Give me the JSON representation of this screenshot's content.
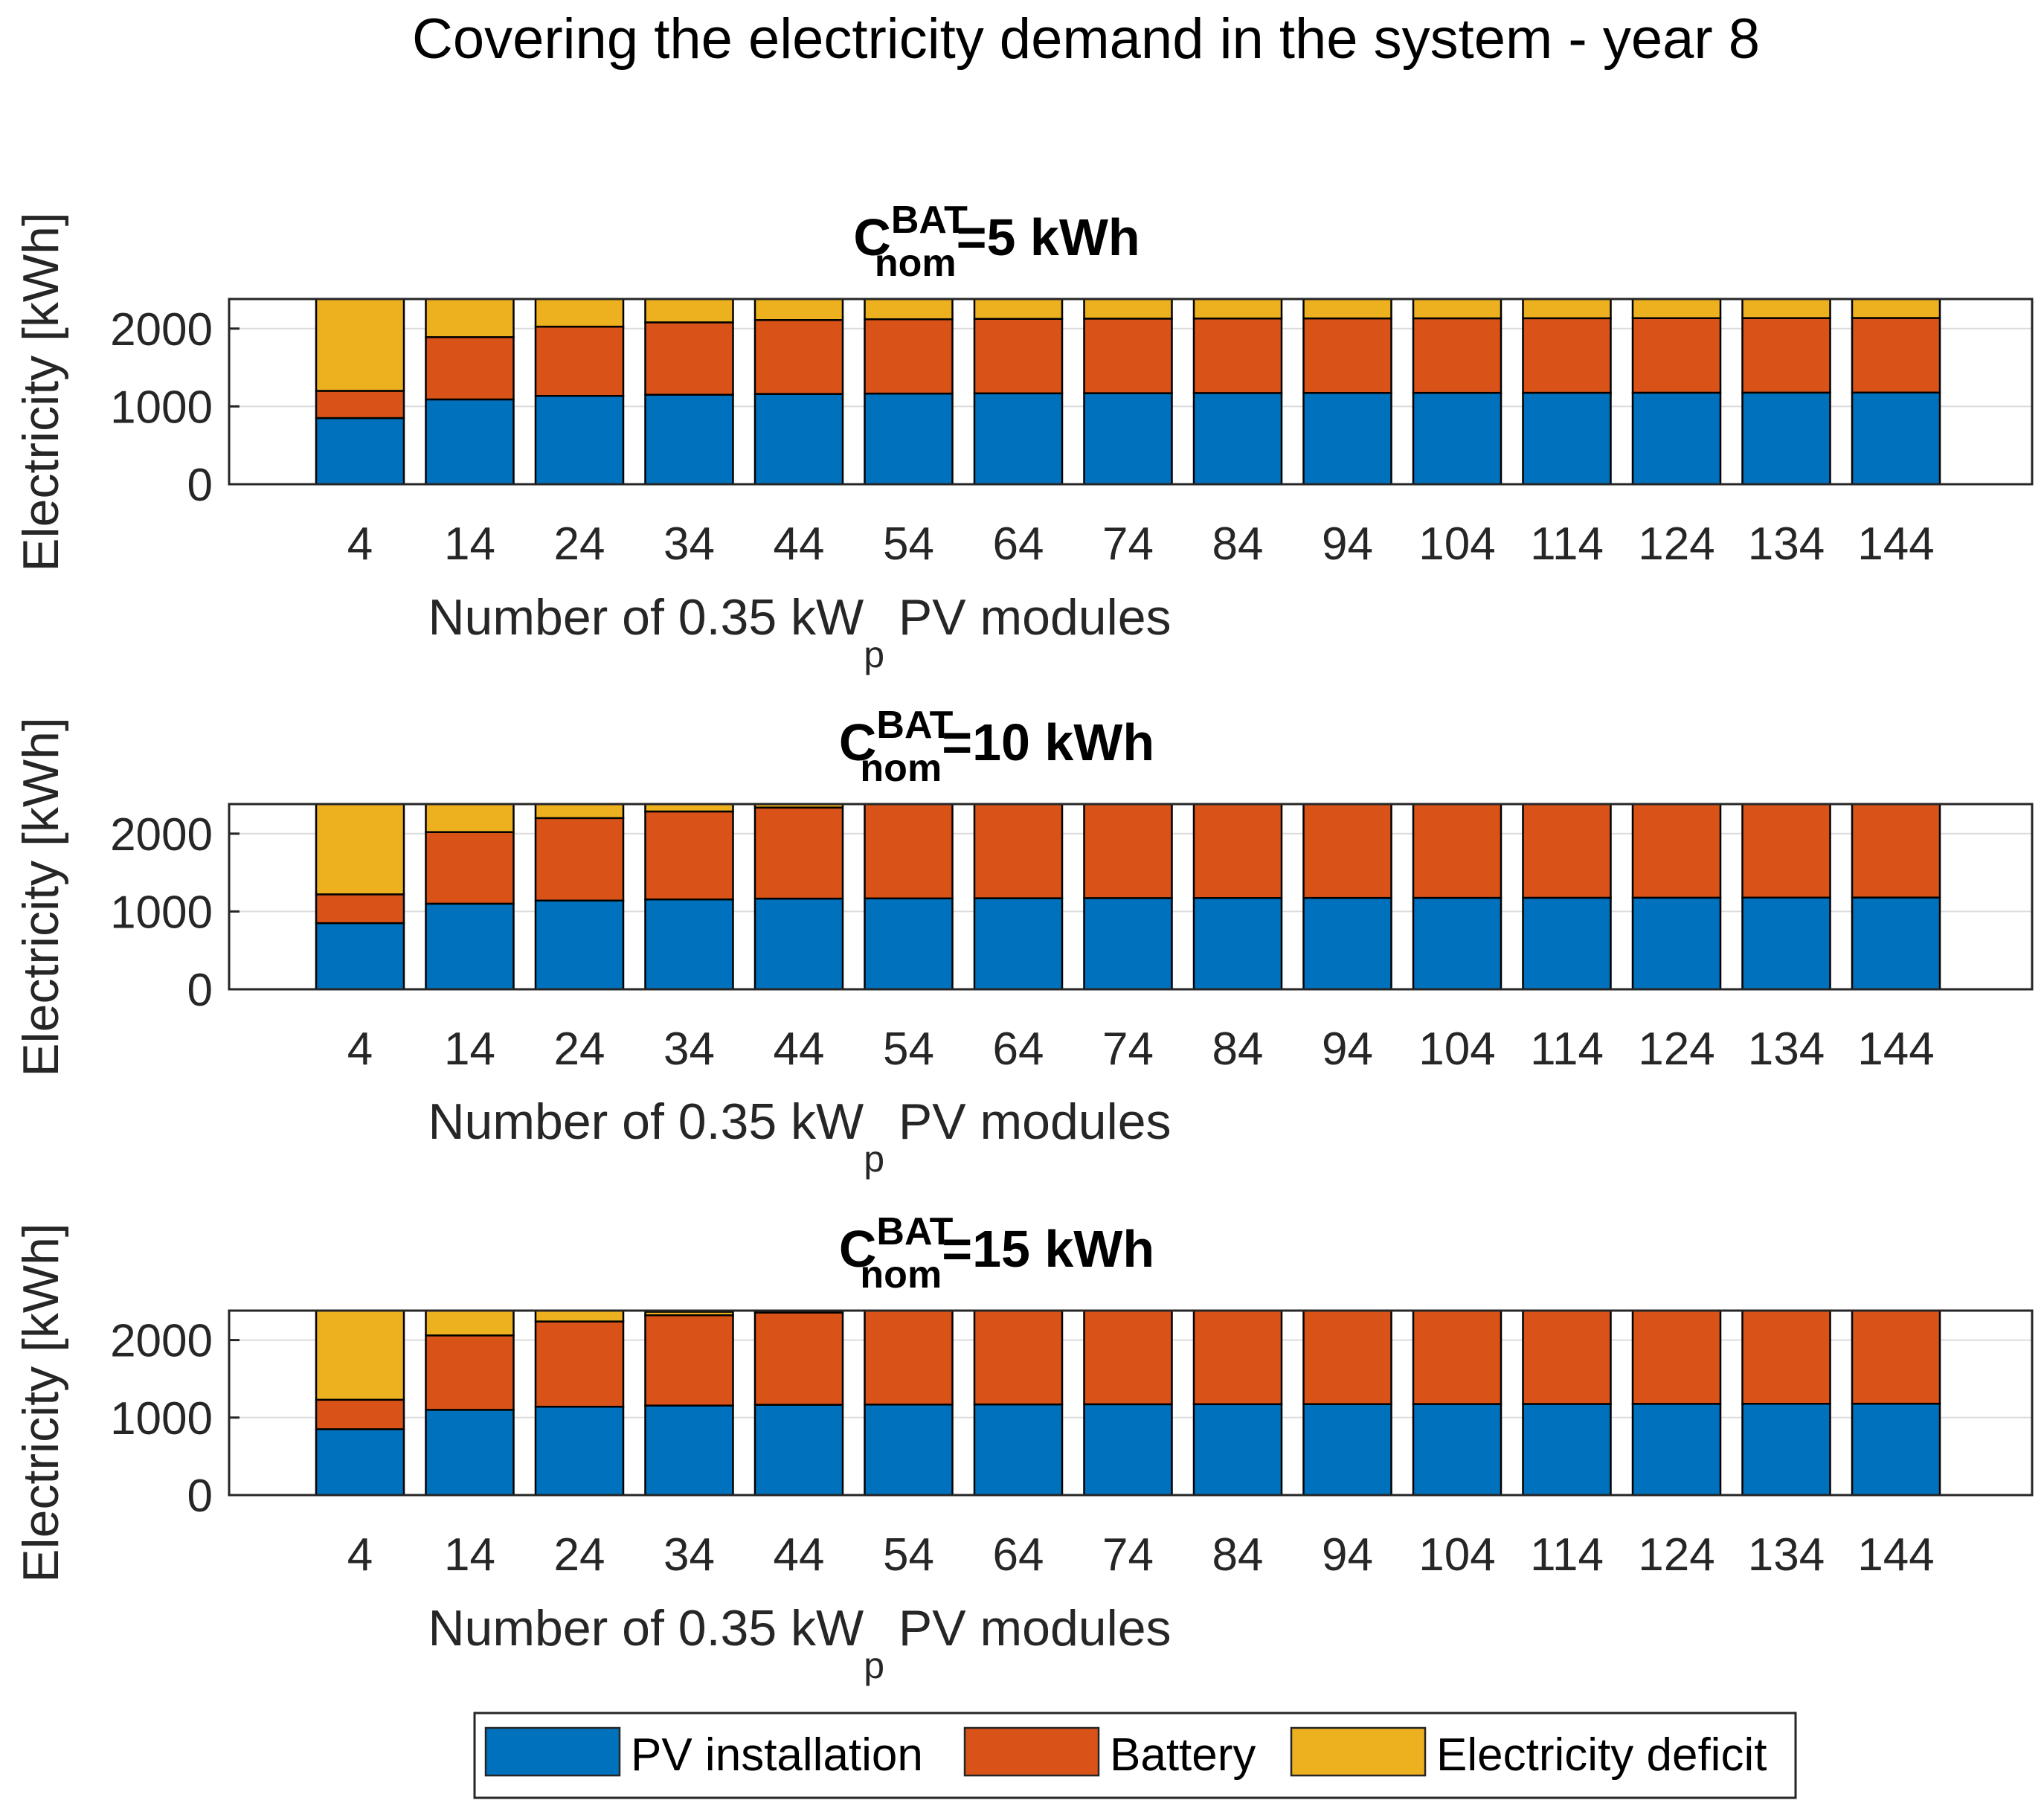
{
  "title": "Covering the electricity demand in the system - year 8",
  "colors": {
    "pv": "#0072BD",
    "battery": "#D95319",
    "deficit": "#EDB120",
    "grid": "#dcdcdc",
    "text": "#262626"
  },
  "legend": {
    "placement": "bottom-center",
    "items": [
      {
        "label": "PV installation",
        "color": "#0072BD"
      },
      {
        "label": "Battery",
        "color": "#D95319"
      },
      {
        "label": "Electricity deficit",
        "color": "#EDB120"
      }
    ]
  },
  "chart_data": [
    {
      "type": "bar",
      "stacked": true,
      "title": {
        "main": "C",
        "sup": "BAT",
        "sub": "nom",
        "rest": "=5 kWh"
      },
      "xlabel": {
        "main": "Number of 0.35 kW",
        "sub": "p",
        "rest": " PV modules"
      },
      "ylabel": "Electricity [kWh]",
      "ylim": [
        0,
        2380
      ],
      "yticks": [
        0,
        1000,
        2000
      ],
      "grid": true,
      "categories": [
        "4",
        "14",
        "24",
        "34",
        "44",
        "54",
        "64",
        "74",
        "84",
        "94",
        "104",
        "114",
        "124",
        "134",
        "144"
      ],
      "series": [
        {
          "name": "PV installation",
          "values": [
            850,
            1090,
            1135,
            1150,
            1160,
            1165,
            1168,
            1170,
            1172,
            1173,
            1174,
            1175,
            1176,
            1177,
            1178
          ]
        },
        {
          "name": "Battery",
          "values": [
            350,
            800,
            890,
            930,
            950,
            955,
            957,
            958,
            958,
            958,
            958,
            958,
            958,
            958,
            958
          ]
        },
        {
          "name": "Electricity deficit",
          "values": [
            1180,
            490,
            355,
            300,
            270,
            260,
            255,
            252,
            250,
            249,
            248,
            247,
            246,
            245,
            244
          ]
        }
      ]
    },
    {
      "type": "bar",
      "stacked": true,
      "title": {
        "main": "C",
        "sup": "BAT",
        "sub": "nom",
        "rest": "=10 kWh"
      },
      "xlabel": {
        "main": "Number of 0.35 kW",
        "sub": "p",
        "rest": " PV modules"
      },
      "ylabel": "Electricity [kWh]",
      "ylim": [
        0,
        2380
      ],
      "yticks": [
        0,
        1000,
        2000
      ],
      "grid": true,
      "categories": [
        "4",
        "14",
        "24",
        "34",
        "44",
        "54",
        "64",
        "74",
        "84",
        "94",
        "104",
        "114",
        "124",
        "134",
        "144"
      ],
      "series": [
        {
          "name": "PV installation",
          "values": [
            850,
            1100,
            1140,
            1155,
            1165,
            1168,
            1170,
            1172,
            1173,
            1174,
            1175,
            1176,
            1177,
            1178,
            1179
          ]
        },
        {
          "name": "Battery",
          "values": [
            370,
            920,
            1060,
            1130,
            1170,
            1212,
            1210,
            1208,
            1207,
            1206,
            1205,
            1204,
            1203,
            1202,
            1201
          ]
        },
        {
          "name": "Electricity deficit",
          "values": [
            1160,
            360,
            180,
            95,
            45,
            0,
            0,
            0,
            0,
            0,
            0,
            0,
            0,
            0,
            0
          ]
        }
      ]
    },
    {
      "type": "bar",
      "stacked": true,
      "title": {
        "main": "C",
        "sup": "BAT",
        "sub": "nom",
        "rest": "=15 kWh"
      },
      "xlabel": {
        "main": "Number of 0.35 kW",
        "sub": "p",
        "rest": " PV modules"
      },
      "ylabel": "Electricity [kWh]",
      "ylim": [
        0,
        2380
      ],
      "yticks": [
        0,
        1000,
        2000
      ],
      "grid": true,
      "categories": [
        "4",
        "14",
        "24",
        "34",
        "44",
        "54",
        "64",
        "74",
        "84",
        "94",
        "104",
        "114",
        "124",
        "134",
        "144"
      ],
      "series": [
        {
          "name": "PV installation",
          "values": [
            850,
            1100,
            1140,
            1155,
            1165,
            1168,
            1170,
            1172,
            1173,
            1174,
            1175,
            1176,
            1177,
            1178,
            1179
          ]
        },
        {
          "name": "Battery",
          "values": [
            380,
            960,
            1100,
            1165,
            1190,
            1212,
            1210,
            1208,
            1207,
            1206,
            1205,
            1204,
            1203,
            1202,
            1201
          ]
        },
        {
          "name": "Electricity deficit",
          "values": [
            1150,
            320,
            140,
            45,
            10,
            0,
            0,
            0,
            0,
            0,
            0,
            0,
            0,
            0,
            0
          ]
        }
      ]
    }
  ]
}
